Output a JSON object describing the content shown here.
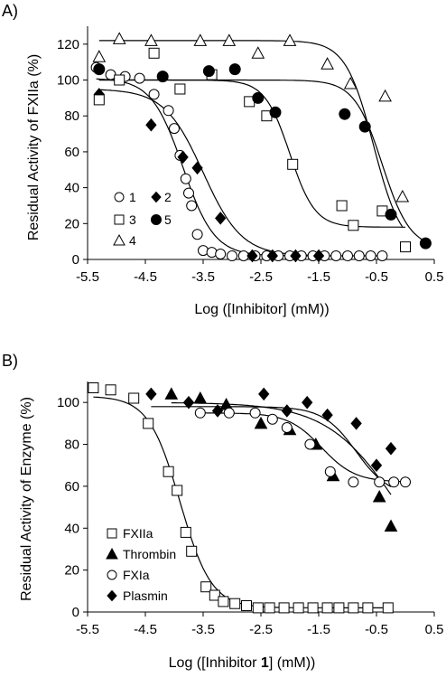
{
  "chart_data": [
    {
      "panel_label": "A)",
      "type": "scatter",
      "xlabel": "Log ([Inhibitor] (mM))",
      "ylabel": "Residual Activity of FXIIa (%)",
      "xlim": [
        -5.5,
        0.5
      ],
      "ylim": [
        0,
        130
      ],
      "xticks": [
        -5.5,
        -4.5,
        -3.5,
        -2.5,
        -1.5,
        -0.5,
        0.5
      ],
      "xtick_labels": [
        "-5.5",
        "-4.5",
        "-3.5",
        "-2.5",
        "-1.5",
        "-0.5",
        "0.5"
      ],
      "yticks": [
        0,
        20,
        40,
        60,
        80,
        100,
        120
      ],
      "ytick_labels": [
        "0",
        "20",
        "40",
        "60",
        "80",
        "100",
        "120"
      ],
      "grid": false,
      "legend_position": "lower-left",
      "series": [
        {
          "name": "1",
          "marker": "open-circle",
          "points": [
            [
              -5.35,
              107
            ],
            [
              -5.1,
              103
            ],
            [
              -4.85,
              102
            ],
            [
              -4.6,
              101
            ],
            [
              -4.35,
              92
            ],
            [
              -4.1,
              83
            ],
            [
              -4.0,
              73
            ],
            [
              -3.9,
              58
            ],
            [
              -3.8,
              45
            ],
            [
              -3.75,
              37
            ],
            [
              -3.7,
              30
            ],
            [
              -3.6,
              14
            ],
            [
              -3.5,
              5
            ],
            [
              -3.35,
              4
            ],
            [
              -3.2,
              3
            ],
            [
              -3.0,
              2
            ],
            [
              -2.8,
              2
            ],
            [
              -2.6,
              2
            ],
            [
              -2.4,
              2
            ],
            [
              -2.2,
              2
            ],
            [
              -2.0,
              2
            ],
            [
              -1.8,
              2
            ],
            [
              -1.6,
              2
            ],
            [
              -1.4,
              2
            ],
            [
              -1.2,
              2
            ],
            [
              -1.0,
              2
            ],
            [
              -0.8,
              2
            ],
            [
              -0.6,
              2
            ],
            [
              -0.4,
              2
            ]
          ],
          "fit": {
            "top": 101,
            "bottom": 2,
            "ic50": -3.85,
            "hill": 1.6
          }
        },
        {
          "name": "2",
          "marker": "filled-diamond",
          "points": [
            [
              -5.3,
              92
            ],
            [
              -4.4,
              75
            ],
            [
              -3.85,
              57
            ],
            [
              -3.6,
              51
            ],
            [
              -3.2,
              23
            ],
            [
              -2.65,
              2
            ],
            [
              -2.3,
              2
            ],
            [
              -1.9,
              2
            ],
            [
              -1.5,
              2
            ]
          ],
          "fit": {
            "top": 95,
            "bottom": 2,
            "ic50": -3.5,
            "hill": 1.3
          }
        },
        {
          "name": "3",
          "marker": "open-square",
          "points": [
            [
              -5.3,
              89
            ],
            [
              -4.95,
              100
            ],
            [
              -4.35,
              115
            ],
            [
              -3.9,
              95
            ],
            [
              -3.35,
              103
            ],
            [
              -2.7,
              88
            ],
            [
              -2.4,
              80
            ],
            [
              -1.95,
              53
            ],
            [
              -1.1,
              30
            ],
            [
              -0.9,
              19
            ],
            [
              -0.4,
              27
            ],
            [
              0.0,
              7
            ]
          ],
          "fit": {
            "top": 100,
            "bottom": 18,
            "ic50": -2.0,
            "hill": 2.0
          }
        },
        {
          "name": "4",
          "marker": "open-triangle",
          "points": [
            [
              -5.3,
              113
            ],
            [
              -4.95,
              123
            ],
            [
              -4.4,
              122
            ],
            [
              -3.55,
              122
            ],
            [
              -3.05,
              122
            ],
            [
              -2.55,
              115
            ],
            [
              -2.0,
              122
            ],
            [
              -1.35,
              109
            ],
            [
              -0.95,
              98
            ],
            [
              -0.35,
              91
            ],
            [
              -0.05,
              35
            ]
          ],
          "fit": {
            "top": 122,
            "bottom": 5,
            "ic50": -0.55,
            "hill": 1.8
          }
        },
        {
          "name": "5",
          "marker": "filled-circle",
          "points": [
            [
              -5.3,
              106
            ],
            [
              -4.2,
              102
            ],
            [
              -3.4,
              105
            ],
            [
              -2.95,
              106
            ],
            [
              -2.55,
              90
            ],
            [
              -2.25,
              82
            ],
            [
              -1.05,
              81
            ],
            [
              -0.7,
              74
            ],
            [
              -0.25,
              25
            ],
            [
              0.35,
              9
            ]
          ],
          "fit": {
            "top": 100,
            "bottom": 6,
            "ic50": -0.4,
            "hill": 1.8
          }
        }
      ]
    },
    {
      "panel_label": "B)",
      "type": "scatter",
      "xlabel": "Log ([Inhibitor 1] (mM))",
      "xlabel_parts": [
        "Log ([Inhibitor ",
        "1",
        "] (mM))"
      ],
      "ylabel": "Residual Activity of Enzyme (%)",
      "xlim": [
        -5.5,
        0.5
      ],
      "ylim": [
        0,
        110
      ],
      "xticks": [
        -5.5,
        -4.5,
        -3.5,
        -2.5,
        -1.5,
        -0.5,
        0.5
      ],
      "xtick_labels": [
        "-5.5",
        "-4.5",
        "-3.5",
        "-2.5",
        "-1.5",
        "-0.5",
        "0.5"
      ],
      "yticks": [
        0,
        20,
        40,
        60,
        80,
        100
      ],
      "ytick_labels": [
        "0",
        "20",
        "40",
        "60",
        "80",
        "100"
      ],
      "grid": false,
      "legend_position": "lower-left",
      "series": [
        {
          "name": "FXIIa",
          "marker": "open-square",
          "points": [
            [
              -5.4,
              107
            ],
            [
              -5.1,
              106
            ],
            [
              -4.7,
              102
            ],
            [
              -4.45,
              90
            ],
            [
              -4.1,
              67
            ],
            [
              -3.95,
              58
            ],
            [
              -3.8,
              38
            ],
            [
              -3.7,
              29
            ],
            [
              -3.45,
              12
            ],
            [
              -3.3,
              8
            ],
            [
              -3.15,
              5
            ],
            [
              -2.95,
              4
            ],
            [
              -2.75,
              3
            ],
            [
              -2.55,
              2
            ],
            [
              -2.35,
              2
            ],
            [
              -2.1,
              2
            ],
            [
              -1.85,
              2
            ],
            [
              -1.6,
              2
            ],
            [
              -1.35,
              2
            ],
            [
              -1.15,
              2
            ],
            [
              -0.9,
              2
            ],
            [
              -0.65,
              2
            ],
            [
              -0.3,
              2
            ]
          ],
          "fit": {
            "top": 103,
            "bottom": 2,
            "ic50": -3.9,
            "hill": 1.6
          }
        },
        {
          "name": "Thrombin",
          "marker": "filled-triangle",
          "points": [
            [
              -4.05,
              104
            ],
            [
              -3.55,
              102
            ],
            [
              -3.1,
              99
            ],
            [
              -2.5,
              90
            ],
            [
              -2.0,
              87
            ],
            [
              -1.55,
              80
            ],
            [
              -1.25,
              65
            ],
            [
              -0.45,
              55
            ],
            [
              -0.25,
              41
            ]
          ],
          "fit": {
            "top": 100,
            "bottom": 0,
            "ic50": -0.1,
            "hill": 0.7
          }
        },
        {
          "name": "FXIa",
          "marker": "open-circle",
          "points": [
            [
              -3.55,
              95
            ],
            [
              -3.05,
              95
            ],
            [
              -2.6,
              95
            ],
            [
              -2.3,
              92
            ],
            [
              -2.05,
              88
            ],
            [
              -1.65,
              80
            ],
            [
              -1.3,
              67
            ],
            [
              -0.9,
              62
            ],
            [
              -0.45,
              62
            ],
            [
              -0.2,
              62
            ],
            [
              0.0,
              62
            ]
          ],
          "fit": {
            "top": 95,
            "bottom": 62,
            "ic50": -1.45,
            "hill": 1.5
          }
        },
        {
          "name": "Plasmin",
          "marker": "filled-diamond",
          "points": [
            [
              -4.4,
              104
            ],
            [
              -3.75,
              100
            ],
            [
              -3.25,
              96
            ],
            [
              -2.45,
              104
            ],
            [
              -2.05,
              96
            ],
            [
              -1.7,
              100
            ],
            [
              -1.35,
              94
            ],
            [
              -0.85,
              90
            ],
            [
              -0.5,
              70
            ],
            [
              -0.25,
              78
            ]
          ],
          "fit": {
            "top": 98,
            "bottom": 55,
            "ic50": -0.85,
            "hill": 1.5
          }
        }
      ]
    }
  ]
}
